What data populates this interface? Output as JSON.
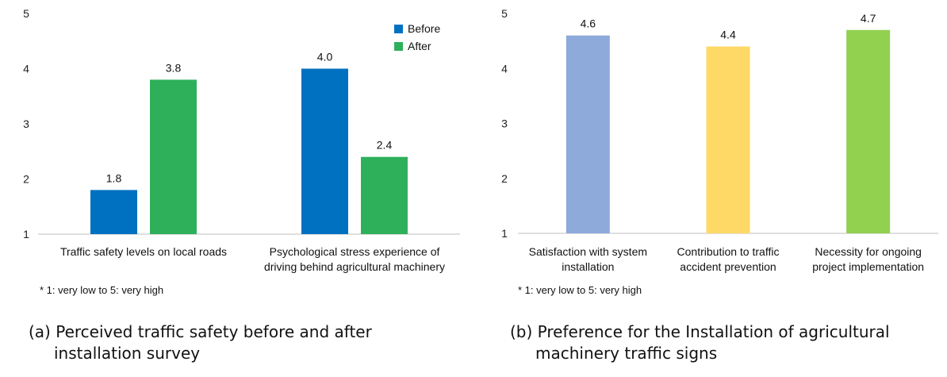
{
  "chart_data": [
    {
      "type": "bar",
      "categories": [
        "Traffic safety levels on local roads",
        "Psychological stress experience of driving behind agricultural machinery"
      ],
      "category_lines": [
        [
          "Traffic safety levels on local roads"
        ],
        [
          "Psychological stress experience of",
          "driving behind agricultural machinery"
        ]
      ],
      "series": [
        {
          "name": "Before",
          "color": "#0070C0",
          "values": [
            1.8,
            4.0
          ],
          "labels": [
            "1.8",
            "4.0"
          ]
        },
        {
          "name": "After",
          "color": "#2EB05A",
          "values": [
            3.8,
            2.4
          ],
          "labels": [
            "3.8",
            "2.4"
          ]
        }
      ],
      "yticks": [
        "1",
        "2",
        "3",
        "4",
        "5"
      ],
      "ylim": [
        1,
        5
      ],
      "grid": false,
      "legend": "top-right",
      "note": "* 1: very low to 5: very high",
      "caption_tag": "(a)",
      "caption_line1": "Perceived traffic safety before and after",
      "caption_line2": "installation survey"
    },
    {
      "type": "bar",
      "categories": [
        "Satisfaction with system installation",
        "Contribution to traffic accident prevention",
        "Necessity for ongoing project implementation"
      ],
      "category_lines": [
        [
          "Satisfaction with system",
          "installation"
        ],
        [
          "Contribution to traffic",
          "accident prevention"
        ],
        [
          "Necessity for ongoing",
          "project implementation"
        ]
      ],
      "values": [
        4.6,
        4.4,
        4.7
      ],
      "labels": [
        "4.6",
        "4.4",
        "4.7"
      ],
      "colors": [
        "#8EAADB",
        "#FFD966",
        "#92D050"
      ],
      "yticks": [
        "1",
        "2",
        "3",
        "4",
        "5"
      ],
      "ylim": [
        1,
        5
      ],
      "grid": false,
      "legend": "none",
      "note": "* 1: very low to 5: very high",
      "caption_tag": "(b)",
      "caption_line1": "Preference for the Installation of agricultural",
      "caption_line2": "machinery traffic signs"
    }
  ]
}
